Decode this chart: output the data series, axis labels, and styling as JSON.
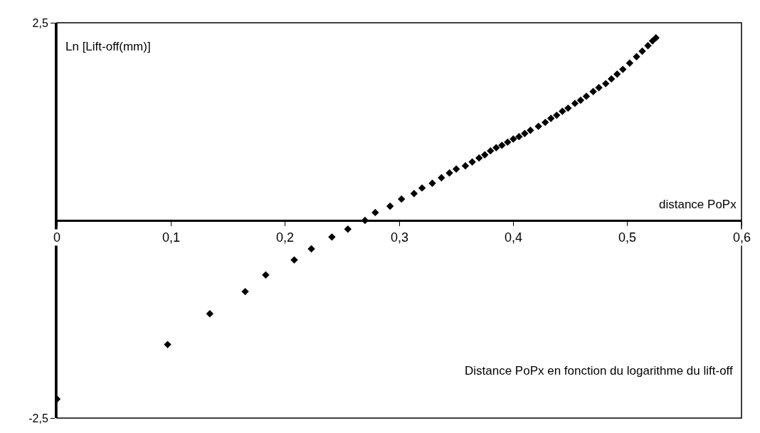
{
  "chart_data": {
    "type": "scatter",
    "title": "Distance PoPx en fonction du logarithme du lift-off",
    "xlabel": "distance PoPx",
    "ylabel": "Ln [Lift-off(mm)]",
    "x": [
      0,
      0.097,
      0.134,
      0.165,
      0.183,
      0.208,
      0.223,
      0.241,
      0.255,
      0.27,
      0.279,
      0.292,
      0.302,
      0.313,
      0.32,
      0.329,
      0.337,
      0.344,
      0.35,
      0.358,
      0.364,
      0.37,
      0.375,
      0.38,
      0.385,
      0.39,
      0.395,
      0.4,
      0.405,
      0.41,
      0.415,
      0.422,
      0.428,
      0.433,
      0.438,
      0.443,
      0.448,
      0.454,
      0.459,
      0.464,
      0.47,
      0.475,
      0.481,
      0.486,
      0.491,
      0.496,
      0.502,
      0.508,
      0.513,
      0.518,
      0.522,
      0.525
    ],
    "values": [
      -2.26,
      -1.57,
      -1.18,
      -0.9,
      -0.69,
      -0.5,
      -0.36,
      -0.21,
      -0.11,
      0,
      0.1,
      0.18,
      0.27,
      0.34,
      0.41,
      0.47,
      0.54,
      0.6,
      0.65,
      0.69,
      0.74,
      0.79,
      0.83,
      0.88,
      0.92,
      0.95,
      0.99,
      1.03,
      1.06,
      1.1,
      1.14,
      1.19,
      1.24,
      1.29,
      1.33,
      1.38,
      1.42,
      1.48,
      1.52,
      1.57,
      1.63,
      1.68,
      1.73,
      1.79,
      1.85,
      1.91,
      1.99,
      2.07,
      2.14,
      2.21,
      2.27,
      2.31
    ],
    "color": "#000000",
    "marker": "diamond",
    "xlim": [
      0,
      0.6
    ],
    "ylim": [
      -2.5,
      2.5
    ],
    "xticks": [
      0,
      {
        "value": 0.1,
        "label": "0,1"
      },
      {
        "value": 0.2,
        "label": "0,2"
      },
      {
        "value": 0.3,
        "label": "0,3"
      },
      {
        "value": 0.4,
        "label": "0,4"
      },
      {
        "value": 0.5,
        "label": "0,5"
      },
      {
        "value": 0.6,
        "label": "0,6"
      }
    ],
    "yticks": [
      {
        "value": -2.5,
        "label": "-2,5"
      },
      {
        "value": 2.5,
        "label": "2,5"
      }
    ]
  }
}
